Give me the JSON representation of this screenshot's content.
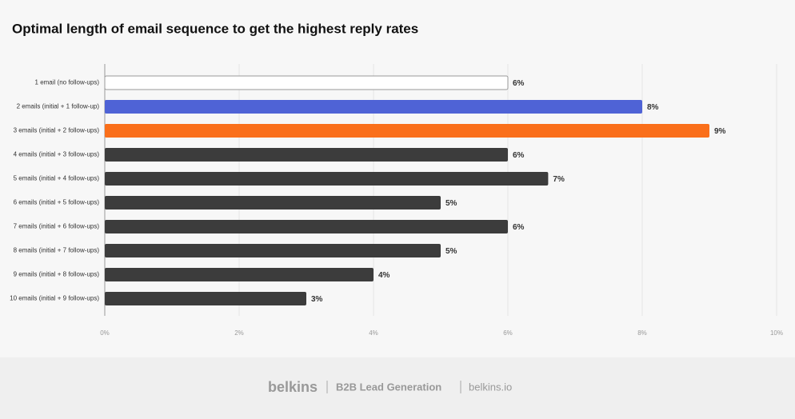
{
  "chart_data": {
    "type": "bar",
    "orientation": "horizontal",
    "title": "Optimal length of email sequence to get the highest reply rates",
    "categories": [
      "1 email (no follow-ups)",
      "2 emails (initial + 1 follow-up)",
      "3 emails (initial + 2 follow-ups)",
      "4 emails (initial + 3 follow-ups)",
      "5 emails (initial + 4 follow-ups)",
      "6 emails (initial + 5 follow-ups)",
      "7 emails (initial + 6 follow-ups)",
      "8 emails (initial + 7 follow-ups)",
      "9 emails (initial + 8 follow-ups)",
      "10 emails (initial + 9 follow-ups)"
    ],
    "values": [
      6,
      8,
      9,
      6,
      6.6,
      5,
      6,
      5,
      4,
      3
    ],
    "value_labels": [
      "6%",
      "8%",
      "9%",
      "6%",
      "7%",
      "5%",
      "6%",
      "5%",
      "4%",
      "3%"
    ],
    "colors": [
      "#ffffff",
      "#4f63d6",
      "#fa6f1a",
      "#3c3c3c",
      "#3c3c3c",
      "#3c3c3c",
      "#3c3c3c",
      "#3c3c3c",
      "#3c3c3c",
      "#3c3c3c"
    ],
    "xlim": [
      0,
      10
    ],
    "xticks": [
      {
        "value": 0,
        "label": "0%"
      },
      {
        "value": 2,
        "label": "2%"
      },
      {
        "value": 4,
        "label": "4%"
      },
      {
        "value": 6,
        "label": "6%"
      },
      {
        "value": 8,
        "label": "8%"
      },
      {
        "value": 10,
        "label": "10%"
      }
    ],
    "grid": true
  },
  "footer": {
    "brand": "belkins",
    "tagline": "B2B Lead Generation",
    "site": "belkins.io"
  }
}
